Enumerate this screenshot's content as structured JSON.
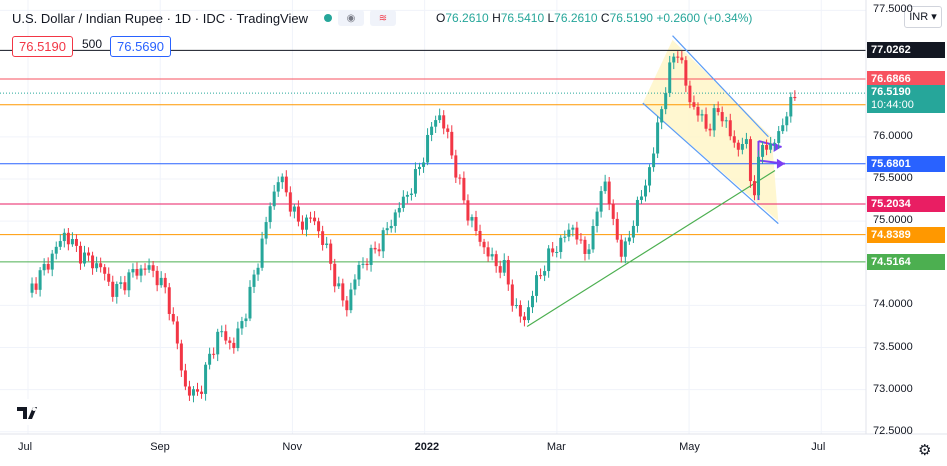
{
  "header": {
    "title": "U.S. Dollar / Indian Rupee · 1D · IDC · TradingView",
    "ohlc": {
      "o_label": "O",
      "o_value": "76.2610",
      "h_label": "H",
      "h_value": "76.5410",
      "l_label": "L",
      "l_value": "76.2610",
      "c_label": "C",
      "c_value": "76.5190",
      "change": "+0.2600 (+0.34%)"
    },
    "bid": "76.5190",
    "quantity": "500",
    "ask": "76.5690",
    "currency": "INR"
  },
  "colors": {
    "up": "#26a69a",
    "down": "#f23645",
    "grid": "#f0f3fa",
    "resistance_black": "#131722",
    "pink": "#f7525f",
    "orange": "#ff9800",
    "blue": "#2962ff",
    "crimson": "#e91e63",
    "green": "#4caf50",
    "arrow": "#7b3ff2",
    "channel": "#5b9cf6",
    "wedge_fill": "#fff5c4"
  },
  "chart_data": {
    "type": "candlestick",
    "title": "U.S. Dollar / Indian Rupee · 1D · IDC · TradingView",
    "x_tick_labels": [
      "Jul",
      "Sep",
      "Nov",
      "2022",
      "Mar",
      "May",
      "Jul"
    ],
    "y_tick_labels": [
      "77.5000",
      "76.0000",
      "75.5000",
      "75.0000",
      "74.0000",
      "73.5000",
      "73.0000",
      "72.5000"
    ],
    "ylim": [
      72.45,
      77.6
    ],
    "x_months_range": [
      0,
      13.1
    ],
    "last_price": "76.5190",
    "last_time": "10:44:00",
    "horizontal_levels": [
      {
        "value": 77.0262,
        "label": "77.0262",
        "color": "#131722"
      },
      {
        "value": 76.6866,
        "label": "76.6866",
        "color": "#f7525f"
      },
      {
        "value": 76.3812,
        "label": "76.3812",
        "color": "#ff9800"
      },
      {
        "value": 75.6801,
        "label": "75.6801",
        "color": "#2962ff"
      },
      {
        "value": 75.2034,
        "label": "75.2034",
        "color": "#e91e63"
      },
      {
        "value": 74.8389,
        "label": "74.8389",
        "color": "#ff9800"
      },
      {
        "value": 74.5164,
        "label": "74.5164",
        "color": "#4caf50"
      }
    ],
    "close_series": [
      {
        "m": 0.0,
        "v": 74.15
      },
      {
        "m": 0.3,
        "v": 74.5
      },
      {
        "m": 0.55,
        "v": 74.85
      },
      {
        "m": 0.8,
        "v": 74.6
      },
      {
        "m": 1.1,
        "v": 74.45
      },
      {
        "m": 1.3,
        "v": 74.15
      },
      {
        "m": 1.6,
        "v": 74.4
      },
      {
        "m": 1.85,
        "v": 74.45
      },
      {
        "m": 2.1,
        "v": 74.15
      },
      {
        "m": 2.25,
        "v": 73.55
      },
      {
        "m": 2.4,
        "v": 72.95
      },
      {
        "m": 2.6,
        "v": 72.97
      },
      {
        "m": 2.75,
        "v": 73.4
      },
      {
        "m": 2.9,
        "v": 73.7
      },
      {
        "m": 3.1,
        "v": 73.5
      },
      {
        "m": 3.3,
        "v": 73.95
      },
      {
        "m": 3.5,
        "v": 74.6
      },
      {
        "m": 3.65,
        "v": 75.15
      },
      {
        "m": 3.8,
        "v": 75.55
      },
      {
        "m": 3.95,
        "v": 75.25
      },
      {
        "m": 4.1,
        "v": 74.95
      },
      {
        "m": 4.3,
        "v": 75.05
      },
      {
        "m": 4.5,
        "v": 74.7
      },
      {
        "m": 4.65,
        "v": 74.3
      },
      {
        "m": 4.8,
        "v": 73.95
      },
      {
        "m": 5.0,
        "v": 74.45
      },
      {
        "m": 5.2,
        "v": 74.6
      },
      {
        "m": 5.4,
        "v": 74.85
      },
      {
        "m": 5.6,
        "v": 75.15
      },
      {
        "m": 5.8,
        "v": 75.4
      },
      {
        "m": 5.95,
        "v": 75.7
      },
      {
        "m": 6.1,
        "v": 76.1
      },
      {
        "m": 6.2,
        "v": 76.3
      },
      {
        "m": 6.35,
        "v": 76.0
      },
      {
        "m": 6.5,
        "v": 75.5
      },
      {
        "m": 6.65,
        "v": 75.1
      },
      {
        "m": 6.85,
        "v": 74.75
      },
      {
        "m": 7.05,
        "v": 74.5
      },
      {
        "m": 7.2,
        "v": 74.45
      },
      {
        "m": 7.35,
        "v": 74.0
      },
      {
        "m": 7.5,
        "v": 73.8
      },
      {
        "m": 7.65,
        "v": 74.2
      },
      {
        "m": 7.85,
        "v": 74.55
      },
      {
        "m": 8.05,
        "v": 74.75
      },
      {
        "m": 8.25,
        "v": 74.95
      },
      {
        "m": 8.4,
        "v": 74.6
      },
      {
        "m": 8.55,
        "v": 74.85
      },
      {
        "m": 8.7,
        "v": 75.55
      },
      {
        "m": 8.85,
        "v": 75.0
      },
      {
        "m": 9.0,
        "v": 74.55
      },
      {
        "m": 9.15,
        "v": 75.0
      },
      {
        "m": 9.3,
        "v": 75.35
      },
      {
        "m": 9.45,
        "v": 75.75
      },
      {
        "m": 9.55,
        "v": 76.25
      },
      {
        "m": 9.7,
        "v": 76.75
      },
      {
        "m": 9.8,
        "v": 77.1
      },
      {
        "m": 9.9,
        "v": 76.8
      },
      {
        "m": 10.0,
        "v": 76.45
      },
      {
        "m": 10.15,
        "v": 76.25
      },
      {
        "m": 10.3,
        "v": 76.1
      },
      {
        "m": 10.45,
        "v": 76.35
      },
      {
        "m": 10.6,
        "v": 76.05
      },
      {
        "m": 10.75,
        "v": 75.85
      },
      {
        "m": 10.85,
        "v": 76.0
      },
      {
        "m": 10.95,
        "v": 75.4
      },
      {
        "m": 11.0,
        "v": 75.35
      },
      {
        "m": 11.1,
        "v": 75.95
      },
      {
        "m": 11.25,
        "v": 75.85
      },
      {
        "m": 11.35,
        "v": 76.05
      },
      {
        "m": 11.5,
        "v": 76.3
      },
      {
        "m": 11.6,
        "v": 76.52
      }
    ],
    "drawings": {
      "channel_upper": [
        [
          9.75,
          77.2
        ],
        [
          11.2,
          76.0
        ]
      ],
      "channel_lower": [
        [
          9.3,
          76.4
        ],
        [
          11.35,
          74.97
        ]
      ],
      "trendline_support": [
        [
          7.55,
          73.75
        ],
        [
          11.3,
          75.6
        ]
      ],
      "wedge_polygon": [
        [
          9.75,
          77.15
        ],
        [
          11.25,
          76.0
        ],
        [
          11.35,
          75.0
        ],
        [
          9.3,
          76.4
        ]
      ],
      "arrows": [
        [
          [
            11.05,
            75.95
          ],
          [
            11.4,
            75.88
          ]
        ],
        [
          [
            11.05,
            75.72
          ],
          [
            11.45,
            75.68
          ]
        ]
      ]
    }
  }
}
